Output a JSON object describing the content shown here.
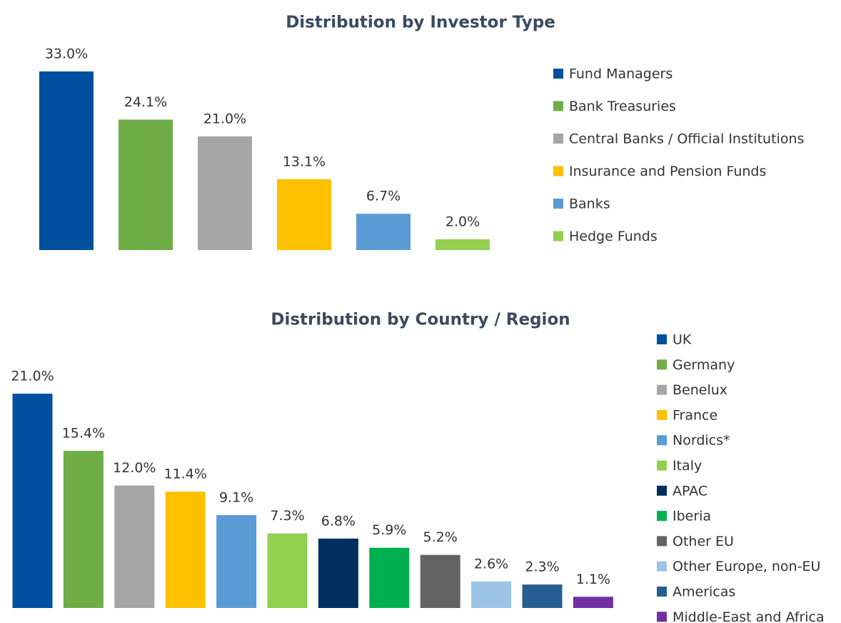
{
  "chart_data": [
    {
      "type": "bar",
      "title": "Distribution by Investor Type",
      "categories": [
        "Fund Managers",
        "Bank Treasuries",
        "Central Banks / Official Institutions",
        "Insurance and Pension Funds",
        "Banks",
        "Hedge Funds"
      ],
      "values": [
        33.0,
        24.1,
        21.0,
        13.1,
        6.7,
        2.0
      ],
      "value_labels": [
        "33.0%",
        "24.1%",
        "21.0%",
        "13.1%",
        "6.7%",
        "2.0%"
      ],
      "colors": [
        "#0050a0",
        "#70ad47",
        "#a5a5a5",
        "#ffc000",
        "#5b9bd5",
        "#92d050"
      ],
      "legend": "right"
    },
    {
      "type": "bar",
      "title": "Distribution by Country / Region",
      "categories": [
        "UK",
        "Germany",
        "Benelux",
        "France",
        "Nordics*",
        "Italy",
        "APAC",
        "Iberia",
        "Other EU",
        "Other Europe, non-EU",
        "Americas",
        "Middle-East and Africa"
      ],
      "values": [
        21.0,
        15.4,
        12.0,
        11.4,
        9.1,
        7.3,
        6.8,
        5.9,
        5.2,
        2.6,
        2.3,
        1.1
      ],
      "value_labels": [
        "21.0%",
        "15.4%",
        "12.0%",
        "11.4%",
        "9.1%",
        "7.3%",
        "6.8%",
        "5.9%",
        "5.2%",
        "2.6%",
        "2.3%",
        "1.1%"
      ],
      "colors": [
        "#0050a0",
        "#70ad47",
        "#a5a5a5",
        "#ffc000",
        "#5b9bd5",
        "#92d050",
        "#002f5f",
        "#00b050",
        "#636363",
        "#9dc3e6",
        "#255e91",
        "#7030a0"
      ],
      "legend": "right"
    }
  ]
}
